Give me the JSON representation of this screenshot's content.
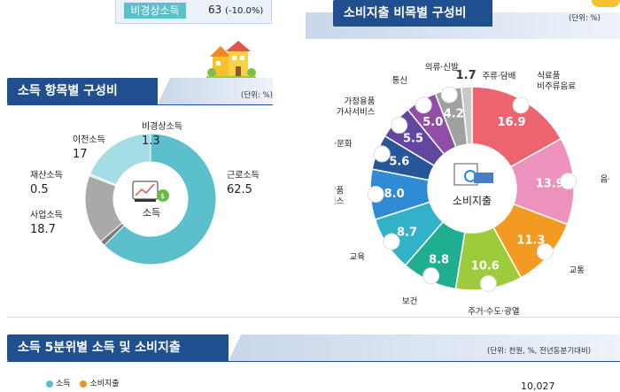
{
  "top_row": {
    "label": "비경상소득",
    "value": "63",
    "change": "(-10.0%)"
  },
  "income_section": {
    "title": "소득 항목별 구성비",
    "unit": "(단위: %)"
  },
  "spending_section": {
    "title": "소비지출 비목별 구성비",
    "unit": "(단위: %)"
  },
  "quintile_section": {
    "title": "소득 5분위별 소득 및 소비지출",
    "unit": "(단위: 천원, %, 전년동분기대비)",
    "legend_income": "소득",
    "legend_spending": "소비지출",
    "partial_value": "10,027"
  },
  "colors": {
    "navy": "#1f4f8e",
    "teal": "#5bc0cc",
    "orange": "#f0902a"
  },
  "chart_data": [
    {
      "type": "pie",
      "title": "소득 항목별 구성비",
      "center_label": "소득",
      "slices": [
        {
          "name": "근로소득",
          "value": 62.5,
          "color": "#5bc0cc"
        },
        {
          "name": "비경상소득",
          "value": 1.3,
          "color": "#7b7b7b"
        },
        {
          "name": "이전소득",
          "value": 17.0,
          "color": "#a9a9a9"
        },
        {
          "name": "재산소득",
          "value": 0.5,
          "color": "#c6e8ee"
        },
        {
          "name": "사업소득",
          "value": 18.7,
          "color": "#a5dde4"
        }
      ]
    },
    {
      "type": "pie",
      "title": "소비지출 비목별 구성비",
      "center_label": "소비지출",
      "slices": [
        {
          "name": "식료품\n비주류음료",
          "value": 16.9,
          "color": "#eb6470"
        },
        {
          "name": "음식·숙박",
          "value": 13.9,
          "color": "#ec92bc"
        },
        {
          "name": "교통",
          "value": 11.3,
          "color": "#f39a22"
        },
        {
          "name": "주거·수도·광열",
          "value": 10.6,
          "color": "#9ccc3c"
        },
        {
          "name": "보건",
          "value": 8.8,
          "color": "#1fae8f"
        },
        {
          "name": "교육",
          "value": 8.7,
          "color": "#32b2c9"
        },
        {
          "name": "기타상품\n서비스",
          "value": 8.0,
          "color": "#2f8bd4"
        },
        {
          "name": "오락·문화",
          "value": 5.6,
          "color": "#27569a"
        },
        {
          "name": "가정용품\n가사서비스",
          "value": 5.5,
          "color": "#6147a0"
        },
        {
          "name": "통신",
          "value": 5.0,
          "color": "#924ea6"
        },
        {
          "name": "의류·신발",
          "value": 4.2,
          "color": "#a0a0a0"
        },
        {
          "name": "주류·담배",
          "value": 1.7,
          "color": "#c9c9c9"
        }
      ]
    }
  ]
}
